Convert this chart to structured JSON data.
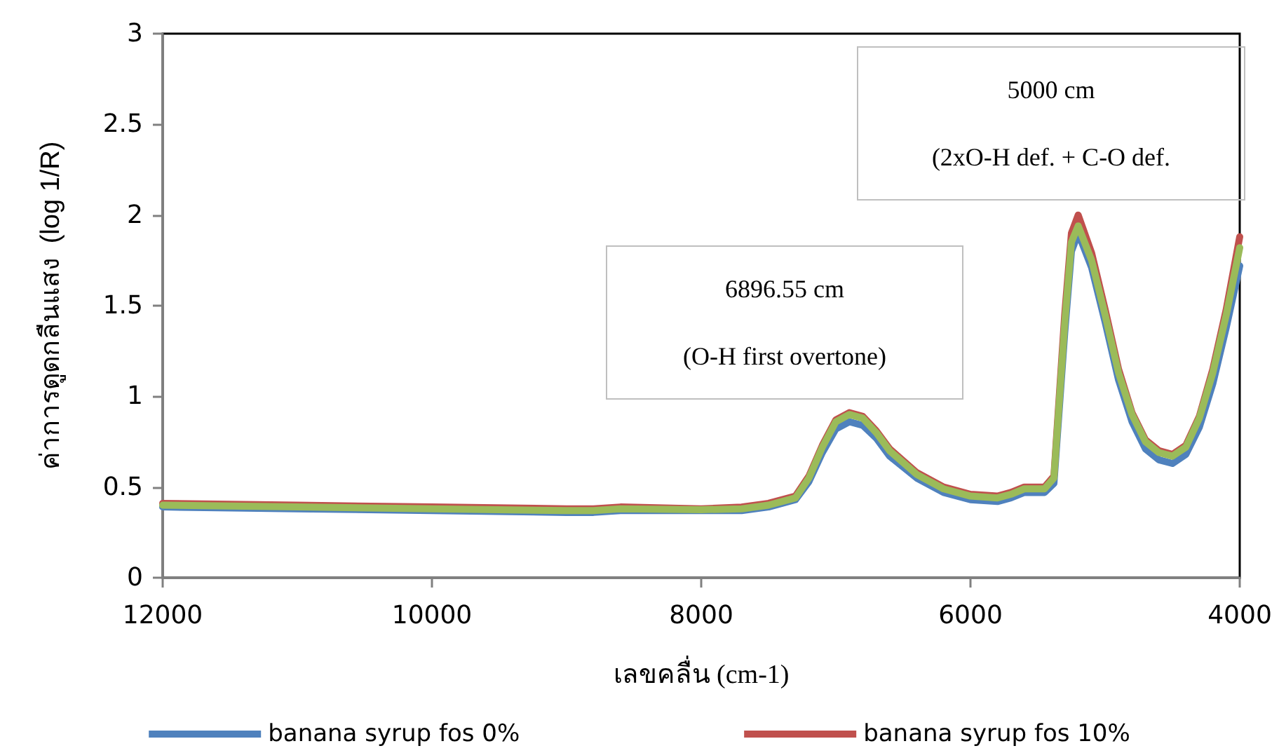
{
  "chart_data": {
    "type": "line",
    "xlabel": "เลขคลื่น (cm-1)",
    "ylabel": "ค่าการดูดกลืนแสง  (log 1/R)",
    "x": [
      12000,
      11000,
      10000,
      9000,
      8800,
      8600,
      8000,
      7700,
      7500,
      7300,
      7200,
      7100,
      7000,
      6900,
      6800,
      6700,
      6600,
      6400,
      6200,
      6000,
      5800,
      5700,
      5600,
      5450,
      5380,
      5300,
      5250,
      5200,
      5100,
      5000,
      4900,
      4800,
      4700,
      4600,
      4500,
      4400,
      4300,
      4200,
      4100,
      4000
    ],
    "series": [
      {
        "name": "banana syrup fos 0%",
        "color": "#4f81bd",
        "values": [
          0.39,
          0.38,
          0.37,
          0.36,
          0.36,
          0.37,
          0.37,
          0.37,
          0.39,
          0.43,
          0.53,
          0.69,
          0.82,
          0.86,
          0.84,
          0.77,
          0.67,
          0.55,
          0.47,
          0.43,
          0.42,
          0.44,
          0.47,
          0.47,
          0.52,
          1.35,
          1.8,
          1.9,
          1.71,
          1.41,
          1.09,
          0.86,
          0.71,
          0.65,
          0.63,
          0.68,
          0.83,
          1.07,
          1.38,
          1.72
        ]
      },
      {
        "name": "banana syrup fos 10%",
        "color": "#c0504d",
        "values": [
          0.41,
          0.4,
          0.39,
          0.38,
          0.38,
          0.39,
          0.38,
          0.39,
          0.41,
          0.45,
          0.56,
          0.73,
          0.87,
          0.91,
          0.89,
          0.81,
          0.71,
          0.58,
          0.5,
          0.46,
          0.45,
          0.47,
          0.5,
          0.5,
          0.56,
          1.45,
          1.9,
          2.0,
          1.79,
          1.48,
          1.15,
          0.91,
          0.76,
          0.7,
          0.68,
          0.73,
          0.89,
          1.15,
          1.48,
          1.88
        ]
      },
      {
        "color": "#9bbb59",
        "values": [
          0.4,
          0.39,
          0.38,
          0.37,
          0.37,
          0.38,
          0.375,
          0.38,
          0.4,
          0.44,
          0.55,
          0.72,
          0.86,
          0.9,
          0.88,
          0.8,
          0.7,
          0.57,
          0.49,
          0.45,
          0.44,
          0.46,
          0.49,
          0.49,
          0.55,
          1.4,
          1.85,
          1.94,
          1.75,
          1.45,
          1.13,
          0.9,
          0.75,
          0.69,
          0.67,
          0.72,
          0.88,
          1.13,
          1.45,
          1.82
        ]
      }
    ],
    "xlim": [
      12000,
      4000
    ],
    "xticks": [
      12000,
      10000,
      8000,
      6000,
      4000
    ],
    "ylim": [
      0,
      3
    ],
    "yticks": [
      0,
      0.5,
      1,
      1.5,
      2,
      2.5,
      3
    ],
    "annotations": [
      "6896.55 cm\n(O-H first overtone)",
      "5000 cm\n(2xO-H def. + C-O def."
    ],
    "legend": "bottom",
    "grid": false,
    "marker": "none",
    "line_style": "solid"
  }
}
